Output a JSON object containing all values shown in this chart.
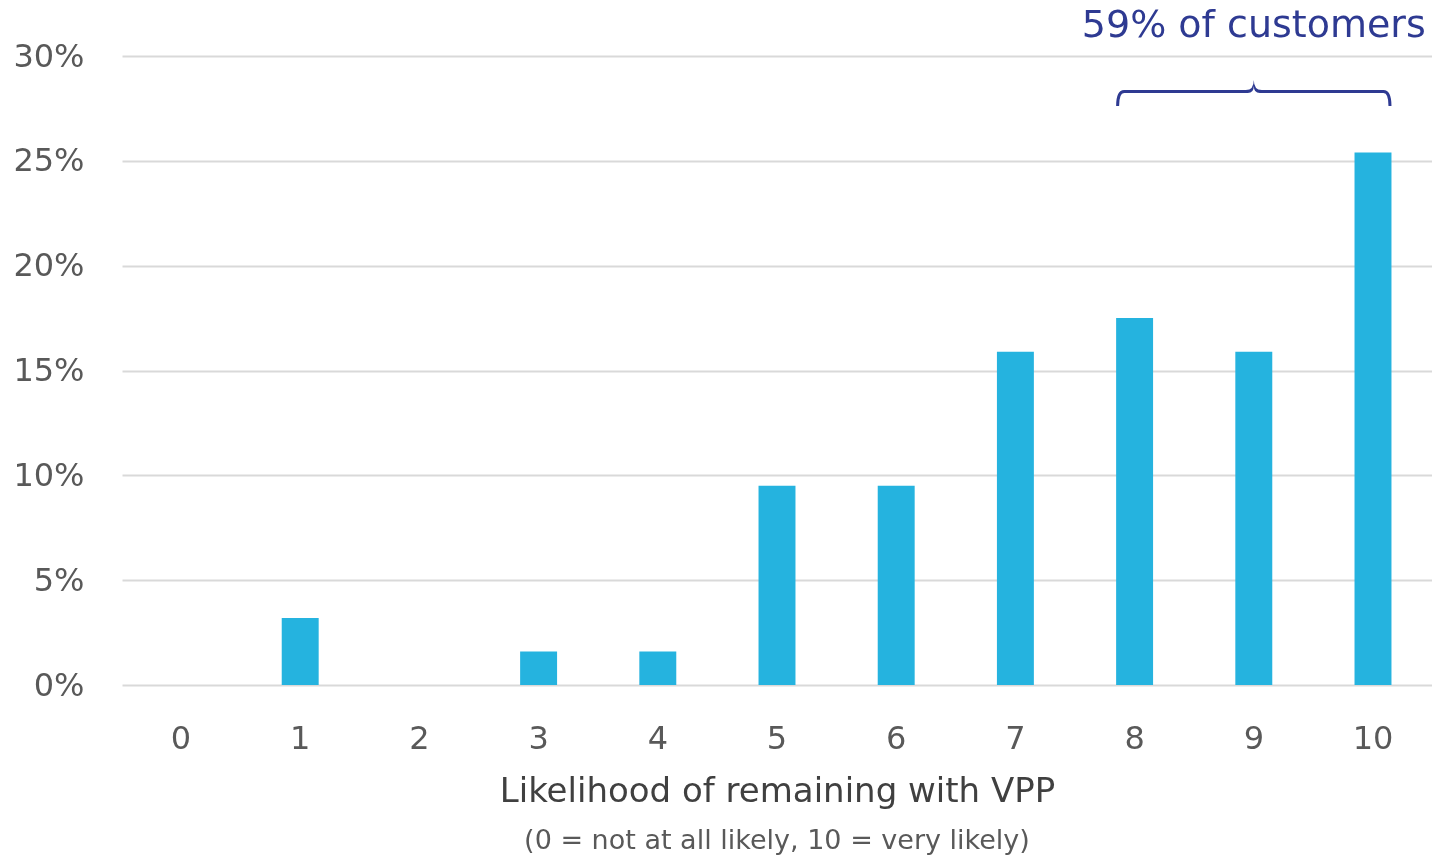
{
  "chart_data": {
    "type": "bar",
    "xlabel": "Likelihood of remaining with VPP",
    "categories": [
      "0",
      "1",
      "2",
      "3",
      "4",
      "5",
      "6",
      "7",
      "8",
      "9",
      "10"
    ],
    "values": [
      0,
      3.2,
      0,
      1.6,
      1.6,
      9.5,
      9.5,
      15.9,
      17.5,
      15.9,
      25.4
    ],
    "color": "#25b3df",
    "ylim": [
      0,
      30
    ],
    "yticks": [
      {
        "value": 0,
        "label": "0%"
      },
      {
        "value": 5,
        "label": "5%"
      },
      {
        "value": 10,
        "label": "10%"
      },
      {
        "value": 15,
        "label": "15%"
      },
      {
        "value": 20,
        "label": "20%"
      },
      {
        "value": 25,
        "label": "25%"
      },
      {
        "value": 30,
        "label": "30%"
      }
    ],
    "grid": "y",
    "annotations": [
      "59% of customers",
      "(0 = not at all likely, 10 = very likely)"
    ]
  }
}
